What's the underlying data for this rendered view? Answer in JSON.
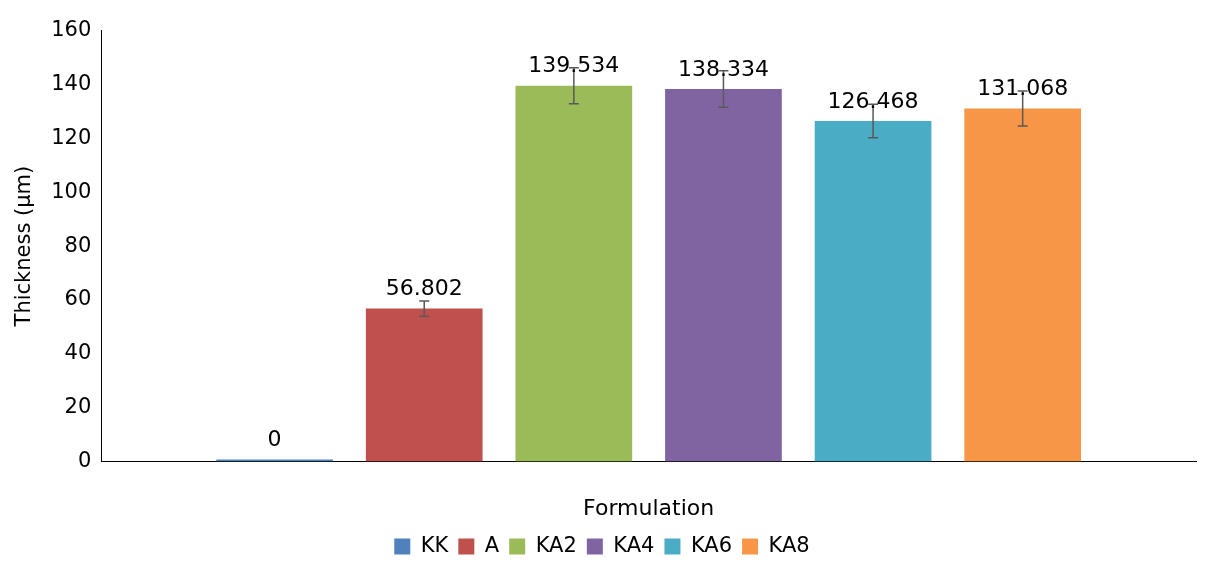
{
  "chart_data": {
    "type": "bar",
    "xlabel": "Formulation",
    "ylabel": "Thickness (µm)",
    "categories": [
      null
    ],
    "series": [
      {
        "name": "KK",
        "color": "#4f81bd",
        "values": [
          0
        ]
      },
      {
        "name": "A",
        "color": "#c0504d",
        "values": [
          56.802
        ],
        "errors": [
          2.8
        ]
      },
      {
        "name": "KA2",
        "color": "#9bbb59",
        "values": [
          139.534
        ],
        "errors": [
          6.7
        ]
      },
      {
        "name": "KA4",
        "color": "#8064a2",
        "values": [
          138.334
        ],
        "errors": [
          6.8
        ]
      },
      {
        "name": "KA6",
        "color": "#4bacc6",
        "values": [
          126.468
        ],
        "errors": [
          6.2
        ]
      },
      {
        "name": "KA8",
        "color": "#f79646",
        "values": [
          131.068
        ],
        "errors": [
          6.5
        ]
      }
    ],
    "ylim": [
      0,
      160
    ],
    "yticks": [
      0,
      20,
      40,
      60,
      80,
      100,
      120,
      140,
      160
    ],
    "grid": false,
    "legend": "bottom",
    "data_labels": true
  }
}
